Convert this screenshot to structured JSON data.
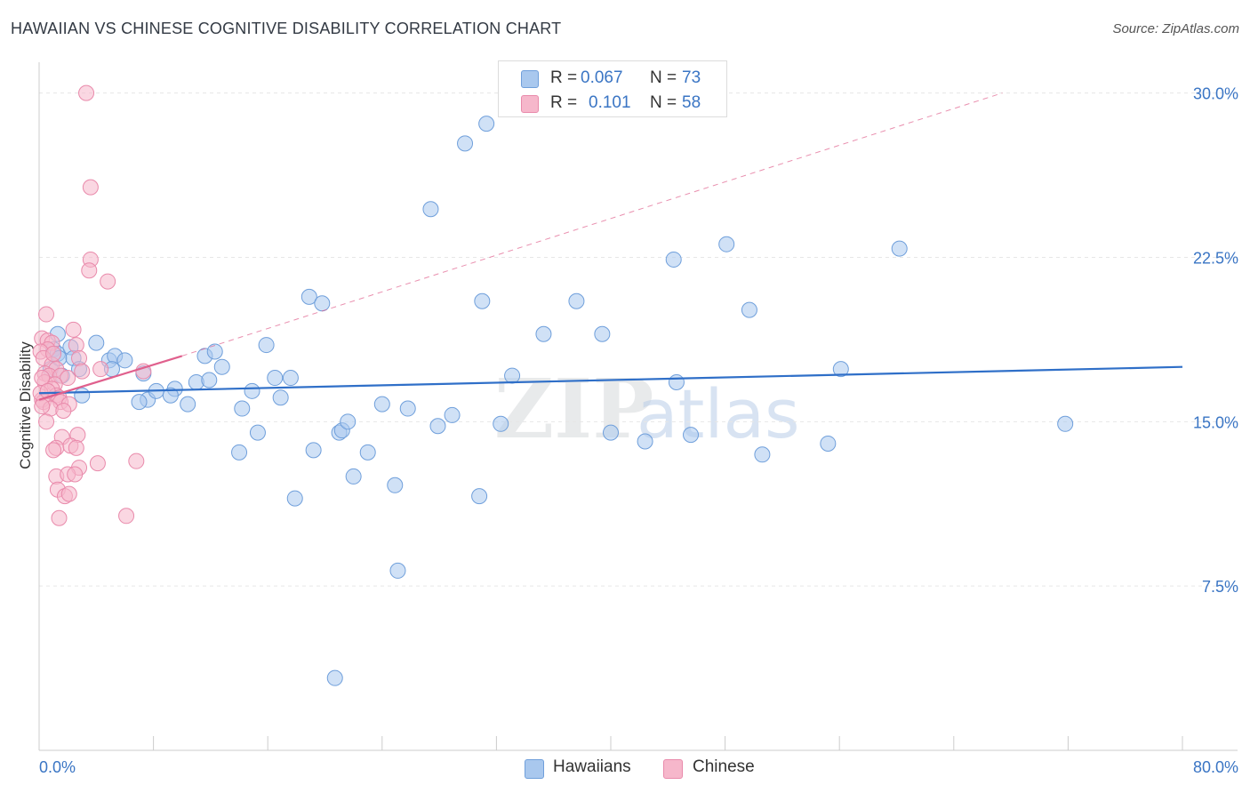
{
  "title": "HAWAIIAN VS CHINESE COGNITIVE DISABILITY CORRELATION CHART",
  "source": "Source: ZipAtlas.com",
  "watermark": {
    "zip": "ZIP",
    "atlas": "atlas"
  },
  "colors": {
    "hawaiians_fill": "#a9c8ee",
    "hawaiians_stroke": "#6f9fdb",
    "hawaiians_line": "#2f6fc8",
    "chinese_fill": "#f6b7cb",
    "chinese_stroke": "#e98aab",
    "chinese_line": "#e0608d",
    "axis_text": "#3a75c4",
    "grid": "#e6e6e6"
  },
  "legend_top": {
    "rows": [
      {
        "r_label": "R =",
        "r_value": "0.067",
        "n_label": "N =",
        "n_value": "73"
      },
      {
        "r_label": "R =",
        "r_value": "0.101",
        "n_label": "N =",
        "n_value": "58"
      }
    ]
  },
  "legend_bottom": [
    "Hawaiians",
    "Chinese"
  ],
  "chart_data": {
    "type": "scatter",
    "title": "HAWAIIAN VS CHINESE COGNITIVE DISABILITY CORRELATION CHART",
    "xlabel": "",
    "ylabel": "Cognitive Disability",
    "xlim": [
      0,
      80
    ],
    "ylim": [
      0,
      31
    ],
    "x_tick_labels": [
      "0.0%",
      "80.0%"
    ],
    "y_ticks": [
      7.5,
      15.0,
      22.5,
      30.0
    ],
    "y_tick_labels": [
      "7.5%",
      "15.0%",
      "22.5%",
      "30.0%"
    ],
    "grid": true,
    "series": [
      {
        "name": "Hawaiians",
        "R": 0.067,
        "N": 73,
        "points": [
          [
            0.8,
            17.4
          ],
          [
            1.0,
            18.3
          ],
          [
            1.3,
            18.1
          ],
          [
            1.4,
            17.9
          ],
          [
            1.3,
            19.0
          ],
          [
            2.2,
            18.4
          ],
          [
            2.4,
            17.9
          ],
          [
            3.0,
            16.2
          ],
          [
            4.0,
            18.6
          ],
          [
            1.6,
            17.1
          ],
          [
            2.8,
            17.4
          ],
          [
            4.9,
            17.8
          ],
          [
            5.3,
            18.0
          ],
          [
            6.0,
            17.8
          ],
          [
            5.1,
            17.4
          ],
          [
            7.3,
            17.2
          ],
          [
            7.6,
            16.0
          ],
          [
            7.0,
            15.9
          ],
          [
            8.2,
            16.4
          ],
          [
            9.5,
            16.5
          ],
          [
            9.2,
            16.2
          ],
          [
            10.4,
            15.8
          ],
          [
            11.0,
            16.8
          ],
          [
            11.6,
            18.0
          ],
          [
            11.9,
            16.9
          ],
          [
            12.3,
            18.2
          ],
          [
            12.8,
            17.5
          ],
          [
            14.2,
            15.6
          ],
          [
            14.0,
            13.6
          ],
          [
            14.9,
            16.4
          ],
          [
            15.3,
            14.5
          ],
          [
            15.9,
            18.5
          ],
          [
            16.5,
            17.0
          ],
          [
            16.9,
            16.1
          ],
          [
            17.6,
            17.0
          ],
          [
            18.9,
            20.7
          ],
          [
            19.8,
            20.4
          ],
          [
            19.2,
            13.7
          ],
          [
            17.9,
            11.5
          ],
          [
            21.0,
            14.5
          ],
          [
            21.2,
            14.6
          ],
          [
            21.6,
            15.0
          ],
          [
            22.0,
            12.5
          ],
          [
            23.0,
            13.6
          ],
          [
            24.0,
            15.8
          ],
          [
            24.9,
            12.1
          ],
          [
            25.1,
            8.2
          ],
          [
            25.8,
            15.6
          ],
          [
            27.4,
            24.7
          ],
          [
            27.9,
            14.8
          ],
          [
            28.9,
            15.3
          ],
          [
            29.8,
            27.7
          ],
          [
            30.8,
            11.6
          ],
          [
            31.0,
            20.5
          ],
          [
            31.3,
            28.6
          ],
          [
            32.3,
            14.9
          ],
          [
            33.1,
            17.1
          ],
          [
            35.3,
            19.0
          ],
          [
            37.6,
            20.5
          ],
          [
            39.4,
            19.0
          ],
          [
            40.0,
            14.5
          ],
          [
            42.4,
            14.1
          ],
          [
            44.4,
            22.4
          ],
          [
            44.6,
            16.8
          ],
          [
            45.6,
            14.4
          ],
          [
            48.1,
            23.1
          ],
          [
            49.7,
            20.1
          ],
          [
            50.6,
            13.5
          ],
          [
            55.2,
            14.0
          ],
          [
            56.1,
            17.4
          ],
          [
            60.2,
            22.9
          ],
          [
            71.8,
            14.9
          ],
          [
            20.7,
            3.3
          ]
        ],
        "trend_solid": [
          [
            0,
            16.3
          ],
          [
            80,
            17.5
          ]
        ]
      },
      {
        "name": "Chinese",
        "R": 0.101,
        "N": 58,
        "points": [
          [
            3.3,
            30.0
          ],
          [
            3.6,
            25.7
          ],
          [
            3.6,
            22.4
          ],
          [
            3.5,
            21.9
          ],
          [
            4.8,
            21.4
          ],
          [
            0.5,
            19.9
          ],
          [
            2.4,
            19.2
          ],
          [
            0.2,
            18.8
          ],
          [
            0.6,
            18.7
          ],
          [
            0.9,
            18.6
          ],
          [
            2.6,
            18.5
          ],
          [
            0.6,
            18.3
          ],
          [
            0.1,
            18.2
          ],
          [
            0.3,
            17.9
          ],
          [
            2.8,
            17.9
          ],
          [
            0.9,
            17.6
          ],
          [
            1.2,
            17.4
          ],
          [
            3.0,
            17.3
          ],
          [
            0.4,
            17.2
          ],
          [
            0.7,
            17.1
          ],
          [
            1.5,
            17.1
          ],
          [
            2.0,
            17.0
          ],
          [
            0.4,
            16.8
          ],
          [
            1.1,
            16.7
          ],
          [
            0.9,
            16.5
          ],
          [
            1.2,
            16.2
          ],
          [
            1.4,
            16.1
          ],
          [
            0.2,
            16.0
          ],
          [
            0.3,
            15.9
          ],
          [
            1.5,
            15.9
          ],
          [
            2.1,
            15.8
          ],
          [
            0.8,
            15.6
          ],
          [
            1.7,
            15.5
          ],
          [
            0.5,
            15.0
          ],
          [
            2.7,
            14.4
          ],
          [
            1.6,
            14.3
          ],
          [
            1.2,
            13.8
          ],
          [
            2.2,
            13.9
          ],
          [
            1.0,
            13.7
          ],
          [
            2.6,
            13.8
          ],
          [
            2.8,
            12.9
          ],
          [
            4.1,
            13.1
          ],
          [
            6.8,
            13.2
          ],
          [
            1.2,
            12.5
          ],
          [
            2.0,
            12.6
          ],
          [
            2.5,
            12.6
          ],
          [
            1.3,
            11.9
          ],
          [
            1.8,
            11.6
          ],
          [
            2.1,
            11.7
          ],
          [
            1.4,
            10.6
          ],
          [
            6.1,
            10.7
          ],
          [
            7.3,
            17.3
          ],
          [
            4.3,
            17.4
          ],
          [
            0.1,
            16.3
          ],
          [
            0.2,
            17.0
          ],
          [
            0.6,
            16.4
          ],
          [
            1.0,
            18.1
          ],
          [
            0.2,
            15.7
          ]
        ],
        "trend_solid": [
          [
            0,
            16.0
          ],
          [
            10,
            18.0
          ]
        ],
        "trend_dashed": [
          [
            10,
            18.0
          ],
          [
            67.4,
            30.0
          ]
        ]
      }
    ]
  }
}
